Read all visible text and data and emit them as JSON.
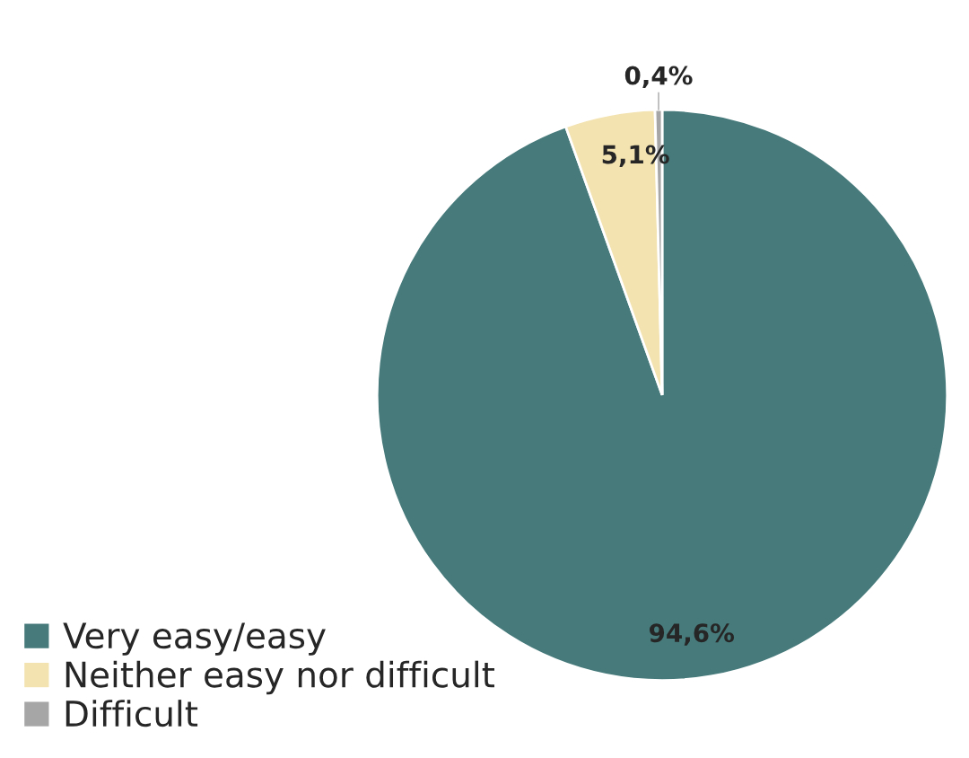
{
  "chart_data": {
    "type": "pie",
    "categories": [
      "Very easy/easy",
      "Neither easy nor difficult",
      "Difficult"
    ],
    "values": [
      94.6,
      5.1,
      0.4
    ],
    "colors": [
      "#467a7b",
      "#f3e3b1",
      "#a6a6a6"
    ],
    "value_labels": [
      "94,6%",
      "5,1%",
      "0,4%"
    ],
    "legend": "bottom left"
  }
}
